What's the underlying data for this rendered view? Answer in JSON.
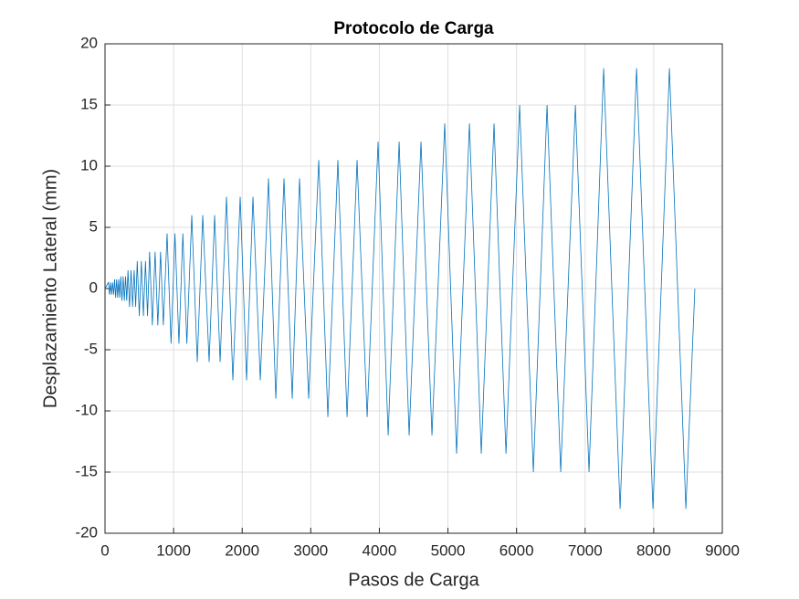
{
  "chart_data": {
    "type": "line",
    "title": "Protocolo de Carga",
    "x_label": "Pasos de Carga",
    "y_label": "Desplazamiento Lateral (mm)",
    "x": [
      0,
      50,
      65,
      80,
      95,
      110,
      125,
      140,
      155,
      170,
      185,
      200,
      215,
      230,
      247,
      265,
      282,
      300,
      317,
      335,
      357,
      380,
      402,
      425,
      447,
      470,
      500,
      530,
      560,
      590,
      620,
      650,
      690,
      730,
      770,
      810,
      850,
      905,
      963,
      1020,
      1078,
      1135,
      1193,
      1265,
      1345,
      1425,
      1518,
      1598,
      1678,
      1771,
      1864,
      1971,
      2064,
      2157,
      2264,
      2384,
      2490,
      2610,
      2730,
      2836,
      2969,
      3116,
      3249,
      3395,
      3529,
      3675,
      3822,
      3981,
      4128,
      4288,
      4434,
      4607,
      4767,
      4953,
      5126,
      5313,
      5486,
      5672,
      5846,
      6045,
      6245,
      6445,
      6644,
      6858,
      7057,
      7270,
      7510,
      7750,
      7989,
      8229,
      8469,
      8600
    ],
    "values": [
      0,
      0.5,
      -0.5,
      0.5,
      -0.5,
      0.5,
      -0.5,
      0.75,
      -0.75,
      0.75,
      -0.75,
      0.75,
      -0.75,
      1,
      -1,
      1,
      -1,
      1,
      -1,
      1.5,
      -1.5,
      1.5,
      -1.5,
      1.5,
      -1.5,
      2.25,
      -2.25,
      2.25,
      -2.25,
      2.25,
      -2.25,
      3,
      -3,
      3,
      -3,
      3,
      -3,
      4.5,
      -4.5,
      4.5,
      -4.5,
      4.5,
      -4.5,
      6,
      -6,
      6,
      -6,
      6,
      -6,
      7.5,
      -7.5,
      7.5,
      -7.5,
      7.5,
      -7.5,
      9,
      -9,
      9,
      -9,
      9,
      -9,
      10.5,
      -10.5,
      10.5,
      -10.5,
      10.5,
      -10.5,
      12,
      -12,
      12,
      -12,
      12,
      -12,
      13.5,
      -13.5,
      13.5,
      -13.5,
      13.5,
      -13.5,
      15,
      -15,
      15,
      -15,
      15,
      -15,
      18,
      -18,
      18,
      -18,
      18,
      -18,
      0
    ],
    "color": "#0072bd",
    "xlim": [
      0,
      9000
    ],
    "xticks": [
      0,
      1000,
      2000,
      3000,
      4000,
      5000,
      6000,
      7000,
      8000,
      9000
    ],
    "ylim": [
      -20,
      20
    ],
    "yticks": [
      -20,
      -15,
      -10,
      -5,
      0,
      5,
      10,
      15,
      20
    ],
    "grid": true
  }
}
